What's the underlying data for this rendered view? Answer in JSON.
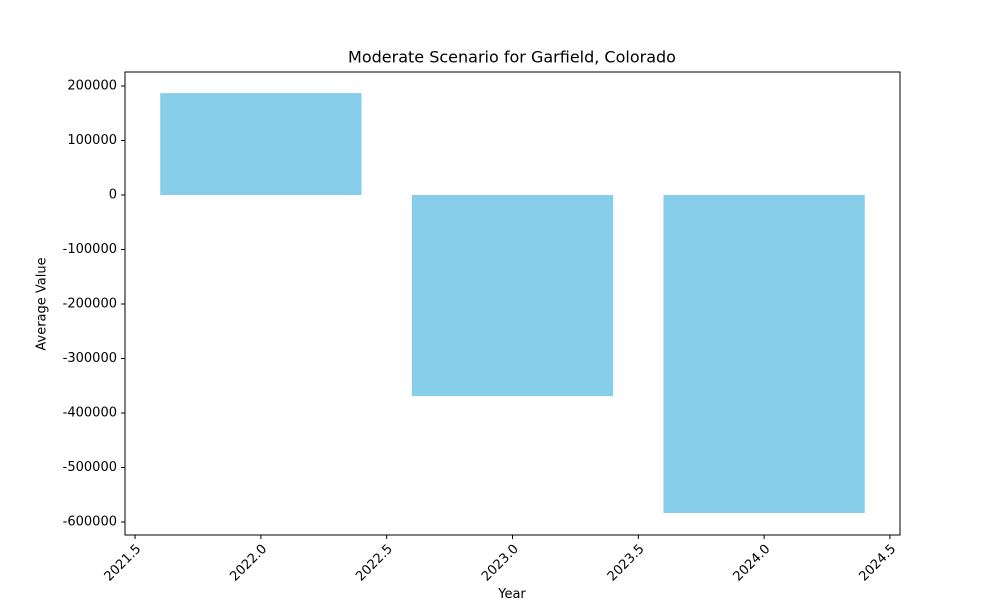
{
  "chart_data": {
    "type": "bar",
    "title": "Moderate Scenario for Garfield, Colorado",
    "x_label": "Year",
    "y_label": "Average Value",
    "x": [
      2022,
      2023,
      2024
    ],
    "values": [
      187000,
      -369000,
      -583500
    ],
    "color": "#87ceeb",
    "xlim": [
      2021.46,
      2024.54
    ],
    "xticks": [
      2021.5,
      {
        "value": 2022,
        "label": "2022.0"
      },
      2022.5,
      {
        "value": 2023,
        "label": "2023.0"
      },
      2023.5,
      {
        "value": 2024,
        "label": "2024.0"
      },
      2024.5
    ],
    "ylim": [
      -623900,
      225700
    ],
    "yticks": [
      -600000,
      -500000,
      -400000,
      -300000,
      -200000,
      -100000,
      0,
      100000,
      200000
    ],
    "grid": false
  }
}
